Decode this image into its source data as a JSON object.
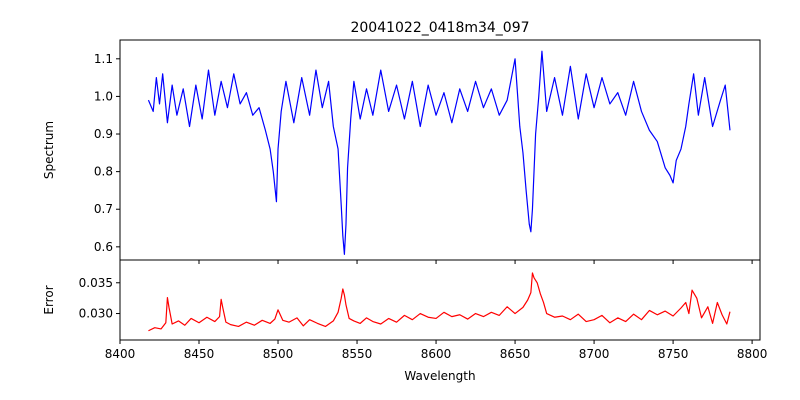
{
  "title": "20041022_0418m34_097",
  "colors": {
    "spectrum": "#0000ff",
    "error": "#ff0000",
    "axes": "#000000"
  },
  "chart_data": [
    {
      "type": "line",
      "panel": "top",
      "xlabel": "",
      "ylabel": "Spectrum",
      "xlim": [
        8400,
        8805
      ],
      "ylim": [
        0.565,
        1.15
      ],
      "yticks": [
        0.6,
        0.7,
        0.8,
        0.9,
        1.0,
        1.1
      ],
      "ytick_labels": [
        "0.6",
        "0.7",
        "0.8",
        "0.9",
        "1.0",
        "1.1"
      ],
      "grid": false,
      "series": [
        {
          "color": "#0000ff",
          "x": [
            8418,
            8421,
            8423,
            8425,
            8427,
            8430,
            8433,
            8436,
            8440,
            8444,
            8448,
            8452,
            8456,
            8460,
            8464,
            8468,
            8472,
            8476,
            8480,
            8484,
            8488,
            8492,
            8495,
            8497,
            8498,
            8499,
            8500,
            8502,
            8505,
            8510,
            8515,
            8520,
            8524,
            8528,
            8532,
            8535,
            8538,
            8540,
            8541,
            8542,
            8543,
            8544,
            8546,
            8548,
            8552,
            8556,
            8560,
            8565,
            8570,
            8575,
            8580,
            8585,
            8590,
            8595,
            8600,
            8605,
            8610,
            8615,
            8620,
            8625,
            8630,
            8635,
            8640,
            8645,
            8650,
            8653,
            8655,
            8657,
            8659,
            8660,
            8661,
            8662,
            8663,
            8665,
            8667,
            8670,
            8675,
            8680,
            8685,
            8690,
            8695,
            8700,
            8705,
            8710,
            8715,
            8720,
            8725,
            8730,
            8735,
            8740,
            8745,
            8748,
            8750,
            8752,
            8755,
            8758,
            8760,
            8763,
            8766,
            8770,
            8775,
            8780,
            8783,
            8786
          ],
          "y": [
            0.99,
            0.96,
            1.05,
            0.98,
            1.06,
            0.93,
            1.03,
            0.95,
            1.02,
            0.92,
            1.03,
            0.94,
            1.07,
            0.95,
            1.04,
            0.97,
            1.06,
            0.98,
            1.01,
            0.95,
            0.97,
            0.91,
            0.86,
            0.8,
            0.76,
            0.72,
            0.86,
            0.96,
            1.04,
            0.93,
            1.05,
            0.95,
            1.07,
            0.97,
            1.04,
            0.92,
            0.86,
            0.71,
            0.63,
            0.58,
            0.66,
            0.81,
            0.94,
            1.04,
            0.94,
            1.02,
            0.95,
            1.07,
            0.96,
            1.03,
            0.94,
            1.04,
            0.92,
            1.03,
            0.95,
            1.01,
            0.93,
            1.02,
            0.96,
            1.04,
            0.97,
            1.02,
            0.95,
            0.99,
            1.1,
            0.92,
            0.85,
            0.75,
            0.66,
            0.64,
            0.7,
            0.8,
            0.9,
            1.0,
            1.12,
            0.96,
            1.05,
            0.95,
            1.08,
            0.94,
            1.06,
            0.97,
            1.05,
            0.98,
            1.01,
            0.95,
            1.04,
            0.96,
            0.91,
            0.88,
            0.81,
            0.79,
            0.77,
            0.83,
            0.86,
            0.92,
            0.98,
            1.06,
            0.95,
            1.05,
            0.92,
            0.99,
            1.03,
            0.91
          ]
        }
      ]
    },
    {
      "type": "line",
      "panel": "bottom",
      "xlabel": "Wavelength",
      "ylabel": "Error",
      "xlim": [
        8400,
        8805
      ],
      "ylim": [
        0.0257,
        0.0387
      ],
      "xticks": [
        8400,
        8450,
        8500,
        8550,
        8600,
        8650,
        8700,
        8750,
        8800
      ],
      "xtick_labels": [
        "8400",
        "8450",
        "8500",
        "8550",
        "8600",
        "8650",
        "8700",
        "8750",
        "8800"
      ],
      "yticks": [
        0.03,
        0.035
      ],
      "ytick_labels": [
        "0.030",
        "0.035"
      ],
      "grid": false,
      "series": [
        {
          "color": "#ff0000",
          "x": [
            8418,
            8422,
            8426,
            8429,
            8430,
            8431,
            8433,
            8437,
            8441,
            8445,
            8450,
            8455,
            8460,
            8463,
            8464,
            8465,
            8467,
            8470,
            8475,
            8480,
            8485,
            8490,
            8495,
            8498,
            8500,
            8503,
            8507,
            8512,
            8516,
            8520,
            8525,
            8530,
            8535,
            8538,
            8540,
            8541,
            8542,
            8543,
            8545,
            8548,
            8552,
            8556,
            8560,
            8565,
            8570,
            8575,
            8580,
            8585,
            8590,
            8595,
            8600,
            8605,
            8610,
            8615,
            8620,
            8625,
            8630,
            8635,
            8640,
            8645,
            8650,
            8655,
            8658,
            8660,
            8661,
            8662,
            8664,
            8666,
            8668,
            8670,
            8675,
            8680,
            8685,
            8690,
            8695,
            8700,
            8705,
            8710,
            8715,
            8720,
            8725,
            8730,
            8735,
            8740,
            8745,
            8750,
            8755,
            8758,
            8760,
            8762,
            8765,
            8768,
            8772,
            8775,
            8778,
            8781,
            8784,
            8786
          ],
          "y": [
            0.0272,
            0.0277,
            0.0275,
            0.0285,
            0.0326,
            0.031,
            0.0283,
            0.0288,
            0.0281,
            0.0292,
            0.0285,
            0.0294,
            0.0287,
            0.0295,
            0.0323,
            0.031,
            0.0286,
            0.0282,
            0.0279,
            0.0286,
            0.0281,
            0.0289,
            0.0284,
            0.0291,
            0.0306,
            0.0289,
            0.0286,
            0.0293,
            0.028,
            0.029,
            0.0284,
            0.0279,
            0.0288,
            0.0302,
            0.0325,
            0.034,
            0.033,
            0.0314,
            0.0292,
            0.0288,
            0.0284,
            0.0293,
            0.0287,
            0.0283,
            0.0292,
            0.0286,
            0.0297,
            0.029,
            0.03,
            0.0294,
            0.0292,
            0.0302,
            0.0295,
            0.0298,
            0.0291,
            0.03,
            0.0295,
            0.0302,
            0.0297,
            0.0311,
            0.03,
            0.031,
            0.0322,
            0.0334,
            0.0366,
            0.0358,
            0.035,
            0.0332,
            0.0318,
            0.03,
            0.0294,
            0.0296,
            0.029,
            0.0299,
            0.0287,
            0.029,
            0.0297,
            0.0285,
            0.0293,
            0.0287,
            0.0299,
            0.029,
            0.0305,
            0.0298,
            0.0304,
            0.0296,
            0.0309,
            0.0318,
            0.03,
            0.0338,
            0.0325,
            0.0293,
            0.0311,
            0.0284,
            0.0318,
            0.0298,
            0.0283,
            0.0303
          ]
        }
      ]
    }
  ]
}
